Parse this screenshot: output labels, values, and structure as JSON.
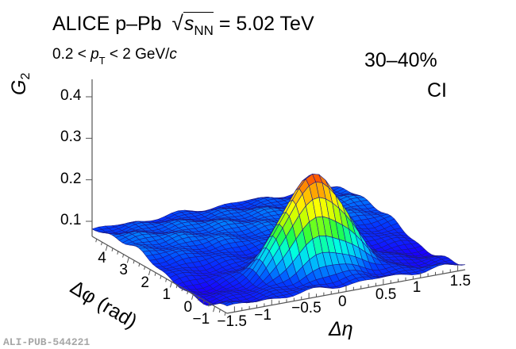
{
  "chart_data": {
    "type": "surface3d",
    "title": "ALICE p–Pb",
    "energy_label": {
      "prefix": "s",
      "subscript": "NN",
      "value": "= 5.02 TeV"
    },
    "subtitle": {
      "pre": "0.2 < ",
      "var": "p",
      "sub": "T",
      "post": " < 2 GeV/",
      "unit": "c"
    },
    "annotations": [
      "30–40%",
      "CI"
    ],
    "zlabel": {
      "main": "G",
      "sub": "2"
    },
    "xlabel": "Δη",
    "ylabel": "Δφ (rad)",
    "z_ticks": [
      "0.1",
      "0.2",
      "0.3",
      "0.4"
    ],
    "z_tick_values": [
      0.1,
      0.2,
      0.3,
      0.4
    ],
    "x_ticks": [
      "−1.5",
      "−1",
      "−0.5",
      "0",
      "0.5",
      "1",
      "1.5"
    ],
    "x_tick_values": [
      -1.5,
      -1,
      -0.5,
      0,
      0.5,
      1,
      1.5
    ],
    "y_ticks": [
      "−1",
      "0",
      "1",
      "2",
      "3",
      "4"
    ],
    "y_tick_values": [
      -1,
      0,
      1,
      2,
      3,
      4
    ],
    "xlim": [
      -1.6,
      1.6
    ],
    "ylim": [
      -1.5708,
      4.7124
    ],
    "zlim": [
      0.08,
      0.44
    ],
    "model": {
      "description": "near-side peak at (0,0) over a broad background",
      "peak_height": 0.31,
      "peak_center": [
        0,
        0
      ],
      "baseline_near": 0.07,
      "baseline_away": 0.1,
      "sigma_eta": 0.42,
      "sigma_phi": 0.5
    },
    "colormap": [
      "#1a00ff",
      "#0040ff",
      "#00b0ff",
      "#00ffe0",
      "#20ff40",
      "#b0ff00",
      "#ffff00",
      "#ffb000",
      "#ff5000"
    ]
  },
  "watermark": "ALI-PUB-544221"
}
